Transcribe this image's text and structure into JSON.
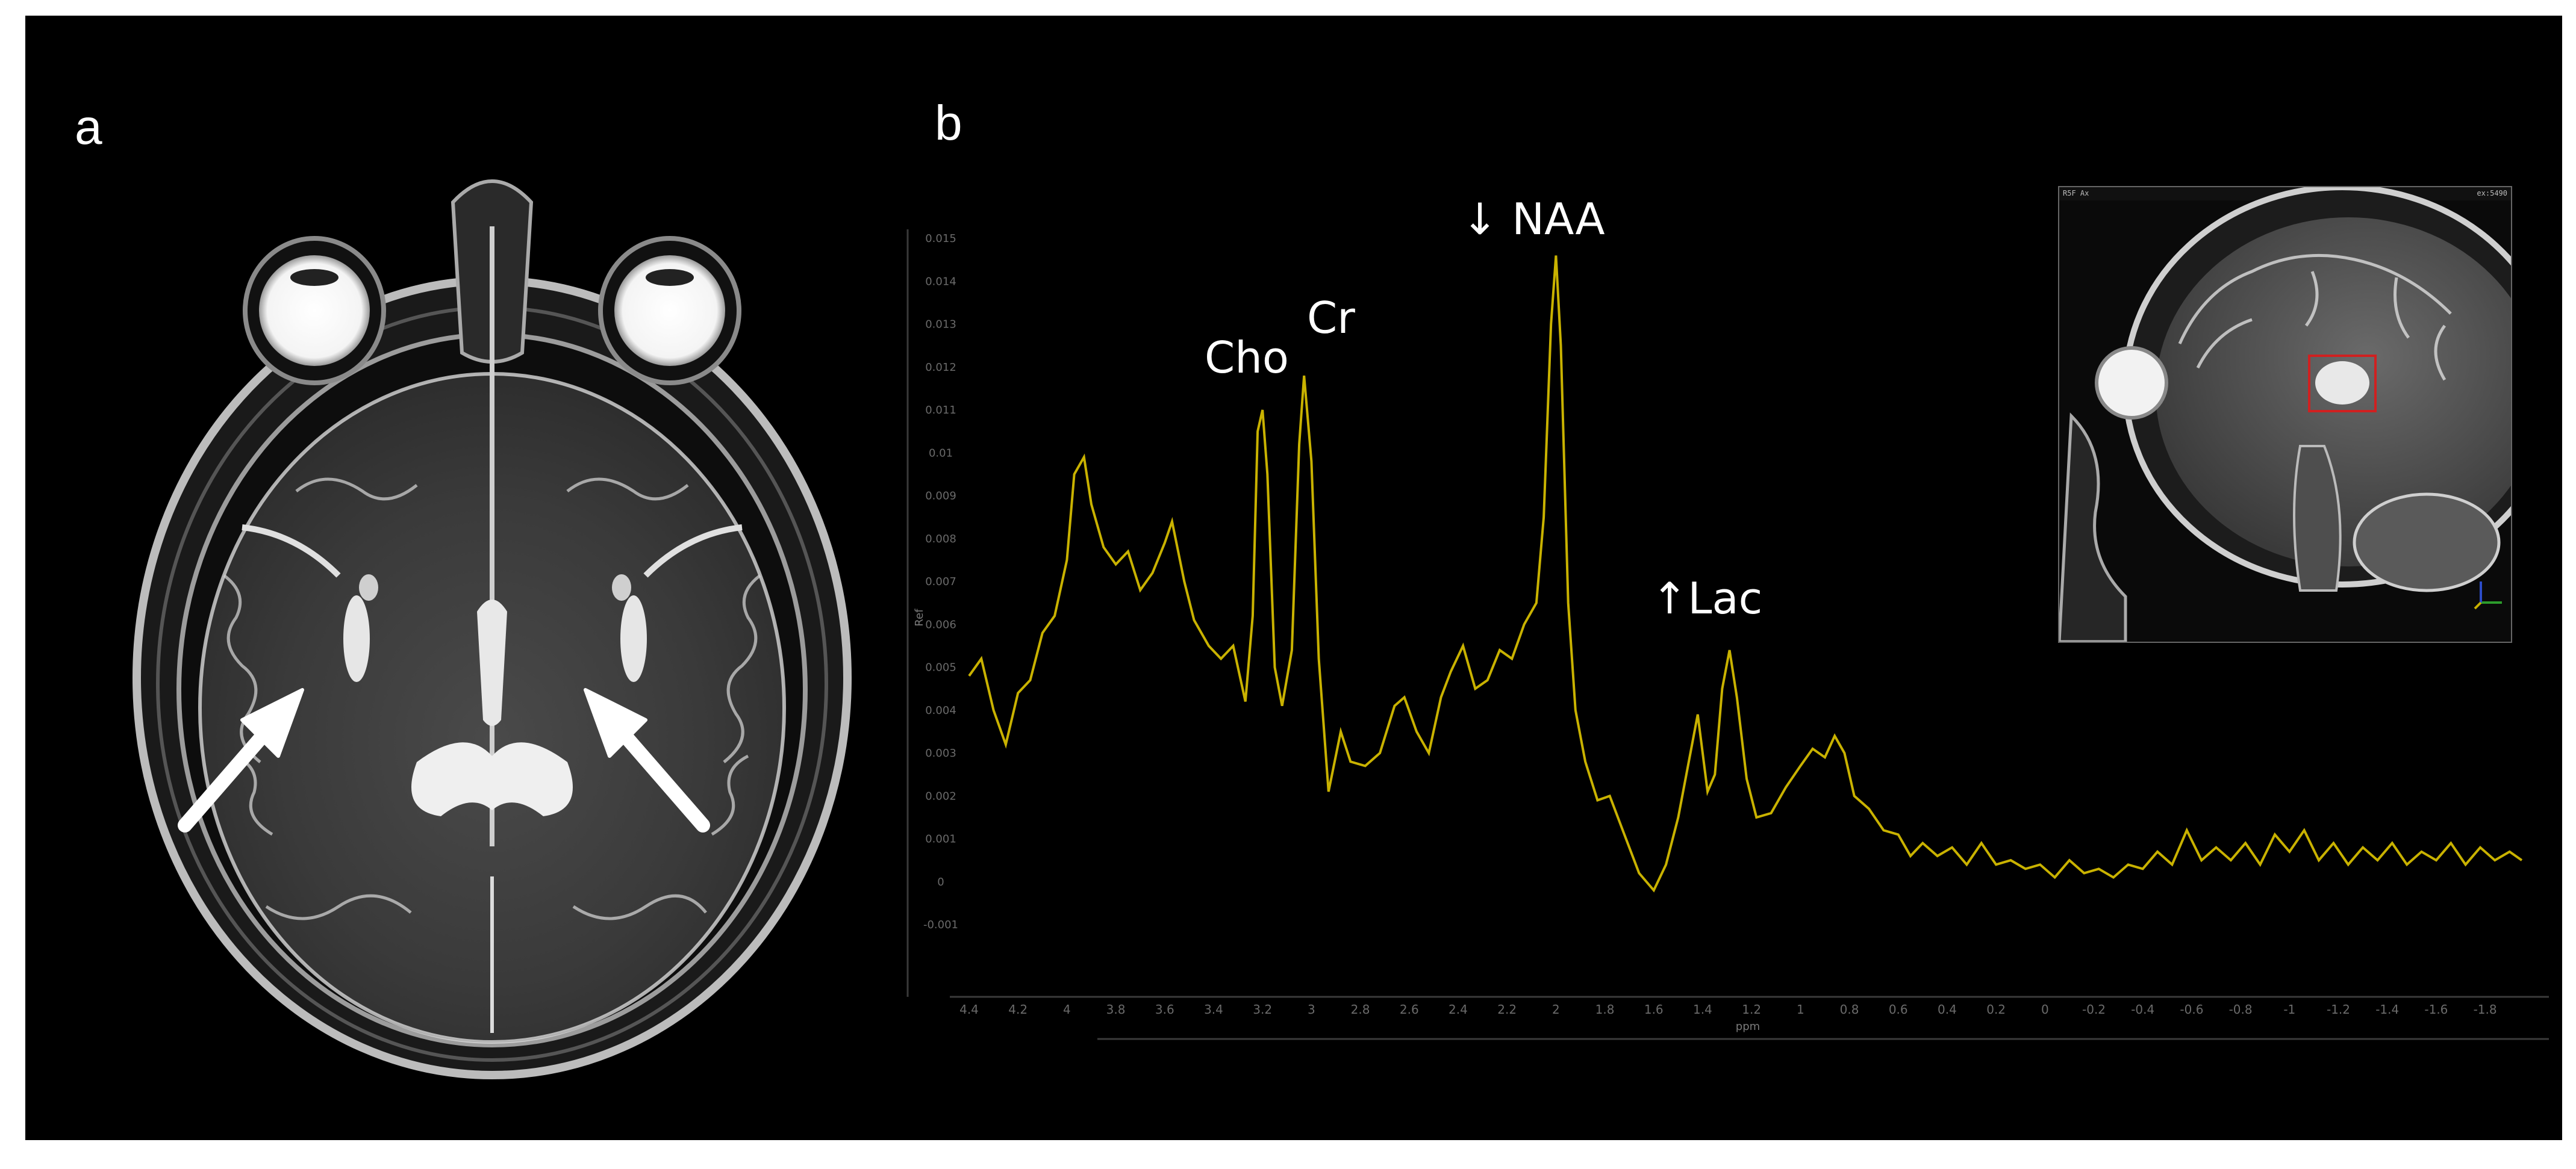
{
  "panels": {
    "a": {
      "letter": "a"
    },
    "b": {
      "letter": "b"
    }
  },
  "spectrum": {
    "peak_labels": {
      "cho": "Cho",
      "cr": "Cr",
      "naa": "↓ NAA",
      "lac": "↑Lac"
    },
    "x_label": "ppm",
    "y_label": "Ref",
    "line_color": "#c9b200",
    "x_ticks": [
      "4.4",
      "4.2",
      "4",
      "3.8",
      "3.6",
      "3.4",
      "3.2",
      "3",
      "2.8",
      "2.6",
      "2.4",
      "2.2",
      "2",
      "1.8",
      "1.6",
      "1.4",
      "1.2",
      "1",
      "0.8",
      "0.6",
      "0.4",
      "0.2",
      "0",
      "-0.2",
      "-0.4",
      "-0.6",
      "-0.8",
      "-1",
      "-1.2",
      "-1.4",
      "-1.6",
      "-1.8"
    ],
    "y_ticks": [
      "0.015",
      "0.014",
      "0.013",
      "0.012",
      "0.011",
      "0.01",
      "0.009",
      "0.008",
      "0.007",
      "0.006",
      "0.005",
      "0.004",
      "0.003",
      "0.002",
      "0.001",
      "0",
      "-0.001"
    ],
    "points": [
      [
        4.4,
        0.0048
      ],
      [
        4.35,
        0.0052
      ],
      [
        4.3,
        0.004
      ],
      [
        4.25,
        0.0032
      ],
      [
        4.2,
        0.0044
      ],
      [
        4.15,
        0.0047
      ],
      [
        4.1,
        0.0058
      ],
      [
        4.05,
        0.0062
      ],
      [
        4.0,
        0.0075
      ],
      [
        3.97,
        0.0095
      ],
      [
        3.93,
        0.0099
      ],
      [
        3.9,
        0.0088
      ],
      [
        3.85,
        0.0078
      ],
      [
        3.8,
        0.0074
      ],
      [
        3.75,
        0.0077
      ],
      [
        3.7,
        0.0068
      ],
      [
        3.65,
        0.0072
      ],
      [
        3.6,
        0.0079
      ],
      [
        3.57,
        0.0084
      ],
      [
        3.52,
        0.007
      ],
      [
        3.48,
        0.0061
      ],
      [
        3.42,
        0.0055
      ],
      [
        3.37,
        0.0052
      ],
      [
        3.32,
        0.0055
      ],
      [
        3.27,
        0.0042
      ],
      [
        3.24,
        0.0062
      ],
      [
        3.22,
        0.0105
      ],
      [
        3.2,
        0.011
      ],
      [
        3.18,
        0.0095
      ],
      [
        3.15,
        0.005
      ],
      [
        3.12,
        0.0041
      ],
      [
        3.08,
        0.0054
      ],
      [
        3.05,
        0.0102
      ],
      [
        3.03,
        0.0118
      ],
      [
        3.0,
        0.0098
      ],
      [
        2.97,
        0.0052
      ],
      [
        2.93,
        0.0021
      ],
      [
        2.88,
        0.0035
      ],
      [
        2.84,
        0.0028
      ],
      [
        2.78,
        0.0027
      ],
      [
        2.72,
        0.003
      ],
      [
        2.66,
        0.0041
      ],
      [
        2.62,
        0.0043
      ],
      [
        2.57,
        0.0035
      ],
      [
        2.52,
        0.003
      ],
      [
        2.47,
        0.0043
      ],
      [
        2.43,
        0.0049
      ],
      [
        2.38,
        0.0055
      ],
      [
        2.33,
        0.0045
      ],
      [
        2.28,
        0.0047
      ],
      [
        2.23,
        0.0054
      ],
      [
        2.18,
        0.0052
      ],
      [
        2.13,
        0.006
      ],
      [
        2.08,
        0.0065
      ],
      [
        2.05,
        0.0085
      ],
      [
        2.02,
        0.013
      ],
      [
        2.0,
        0.0146
      ],
      [
        1.98,
        0.0125
      ],
      [
        1.95,
        0.0065
      ],
      [
        1.92,
        0.004
      ],
      [
        1.88,
        0.0028
      ],
      [
        1.83,
        0.0019
      ],
      [
        1.78,
        0.002
      ],
      [
        1.72,
        0.0011
      ],
      [
        1.66,
        0.0002
      ],
      [
        1.6,
        -0.0002
      ],
      [
        1.55,
        0.0004
      ],
      [
        1.5,
        0.0015
      ],
      [
        1.46,
        0.0027
      ],
      [
        1.42,
        0.0039
      ],
      [
        1.38,
        0.0021
      ],
      [
        1.35,
        0.0025
      ],
      [
        1.32,
        0.0045
      ],
      [
        1.29,
        0.0054
      ],
      [
        1.26,
        0.0043
      ],
      [
        1.22,
        0.0024
      ],
      [
        1.18,
        0.0015
      ],
      [
        1.12,
        0.0016
      ],
      [
        1.06,
        0.0022
      ],
      [
        1.0,
        0.0027
      ],
      [
        0.95,
        0.0031
      ],
      [
        0.9,
        0.0029
      ],
      [
        0.86,
        0.0034
      ],
      [
        0.82,
        0.003
      ],
      [
        0.78,
        0.002
      ],
      [
        0.72,
        0.0017
      ],
      [
        0.66,
        0.0012
      ],
      [
        0.6,
        0.0011
      ],
      [
        0.55,
        0.0006
      ],
      [
        0.5,
        0.0009
      ],
      [
        0.44,
        0.0006
      ],
      [
        0.38,
        0.0008
      ],
      [
        0.32,
        0.0004
      ],
      [
        0.26,
        0.0009
      ],
      [
        0.2,
        0.0004
      ],
      [
        0.14,
        0.0005
      ],
      [
        0.08,
        0.0003
      ],
      [
        0.02,
        0.0004
      ],
      [
        -0.04,
        0.0001
      ],
      [
        -0.1,
        0.0005
      ],
      [
        -0.16,
        0.0002
      ],
      [
        -0.22,
        0.0003
      ],
      [
        -0.28,
        0.0001
      ],
      [
        -0.34,
        0.0004
      ],
      [
        -0.4,
        0.0003
      ],
      [
        -0.46,
        0.0007
      ],
      [
        -0.52,
        0.0004
      ],
      [
        -0.58,
        0.0012
      ],
      [
        -0.64,
        0.0005
      ],
      [
        -0.7,
        0.0008
      ],
      [
        -0.76,
        0.0005
      ],
      [
        -0.82,
        0.0009
      ],
      [
        -0.88,
        0.0004
      ],
      [
        -0.94,
        0.0011
      ],
      [
        -1.0,
        0.0007
      ],
      [
        -1.06,
        0.0012
      ],
      [
        -1.12,
        0.0005
      ],
      [
        -1.18,
        0.0009
      ],
      [
        -1.24,
        0.0004
      ],
      [
        -1.3,
        0.0008
      ],
      [
        -1.36,
        0.0005
      ],
      [
        -1.42,
        0.0009
      ],
      [
        -1.48,
        0.0004
      ],
      [
        -1.54,
        0.0007
      ],
      [
        -1.6,
        0.0005
      ],
      [
        -1.66,
        0.0009
      ],
      [
        -1.72,
        0.0004
      ],
      [
        -1.78,
        0.0008
      ],
      [
        -1.84,
        0.0005
      ],
      [
        -1.9,
        0.0007
      ],
      [
        -1.95,
        0.0005
      ]
    ]
  },
  "inset": {
    "top_left_text": "R5F Ax",
    "top_right_text": "ex:5490"
  }
}
